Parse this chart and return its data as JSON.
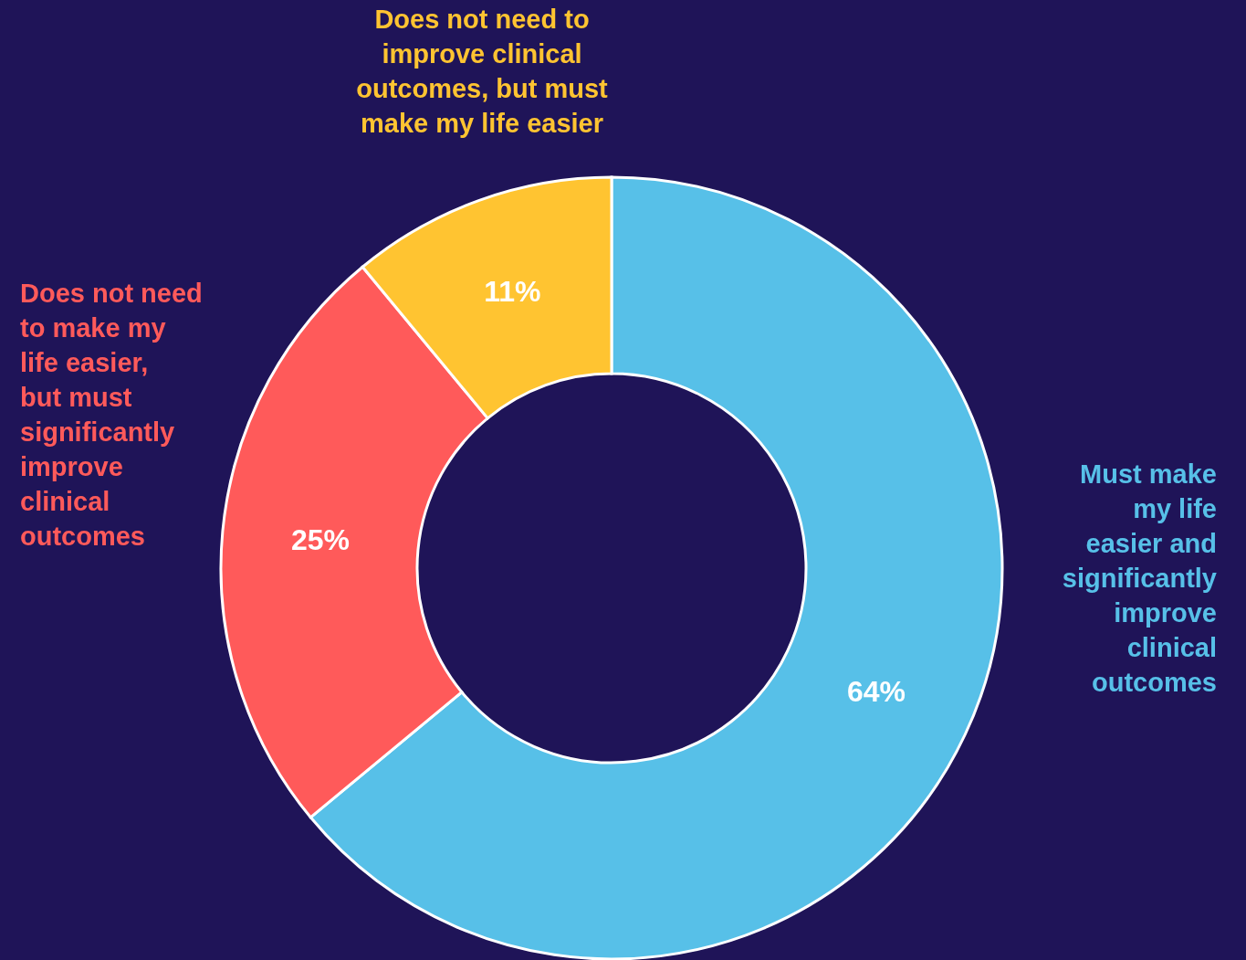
{
  "chart_data": {
    "type": "donut",
    "categories": [
      "Must make my life easier and significantly improve clinical outcomes",
      "Does not need to make my life easier, but must significantly improve clinical outcomes",
      "Does not need to improve clinical outcomes, but must make my life easier"
    ],
    "values": [
      64,
      25,
      11
    ],
    "colors": [
      "#57c0e8",
      "#ff5a5a",
      "#ffc431"
    ],
    "value_labels": [
      "64%",
      "25%",
      "11%"
    ]
  }
}
